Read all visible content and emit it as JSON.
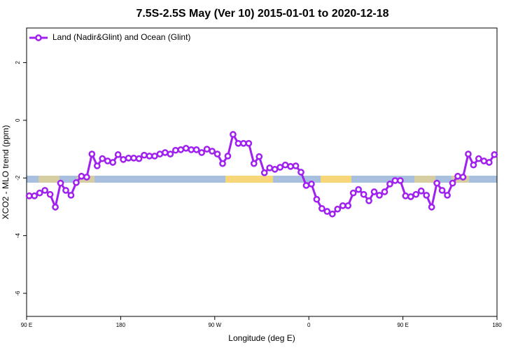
{
  "chart_data": {
    "type": "line",
    "title": "7.5S-2.5S May (Ver 10)   2015-01-01 to 2020-12-18",
    "x_label": "Longitude (deg E)",
    "y_label": "XCO2 - MLO trend (ppm)",
    "xlim": [
      90,
      540
    ],
    "ylim": [
      -6.8,
      3.2
    ],
    "xticks": [
      {
        "value": 90,
        "label": "90 E"
      },
      180,
      {
        "value": 270,
        "label": "90 W"
      },
      {
        "value": 360,
        "label": "0"
      },
      {
        "value": 450,
        "label": "90 E"
      },
      {
        "value": 540,
        "label": "180"
      }
    ],
    "yticks": [
      -6,
      -4,
      -2,
      0,
      2
    ],
    "legend": "upper left",
    "series": [
      {
        "name": "Land (Nadir&Glint) and Ocean (Glint)",
        "color": "#a020f0",
        "x": [
          92.5,
          97.5,
          102.5,
          107.5,
          112.5,
          117.5,
          122.5,
          127.5,
          132.5,
          137.5,
          142.5,
          147.5,
          152.5,
          157.5,
          162.5,
          167.5,
          172.5,
          177.5,
          182.5,
          187.5,
          192.5,
          197.5,
          202.5,
          207.5,
          212.5,
          217.5,
          222.5,
          227.5,
          232.5,
          237.5,
          242.5,
          247.5,
          252.5,
          257.5,
          262.5,
          267.5,
          272.5,
          277.5,
          282.5,
          287.5,
          292.5,
          297.5,
          302.5,
          307.5,
          312.5,
          317.5,
          322.5,
          327.5,
          332.5,
          337.5,
          342.5,
          347.5,
          352.5,
          357.5,
          362.5,
          367.5,
          372.5,
          377.5,
          382.5,
          387.5,
          392.5,
          397.5,
          402.5,
          407.5,
          412.5,
          417.5,
          422.5,
          427.5,
          432.5,
          437.5,
          442.5,
          447.5,
          452.5,
          457.5,
          462.5,
          467.5,
          472.5,
          477.5,
          482.5,
          487.5,
          492.5,
          497.5,
          502.5,
          507.5,
          512.5,
          517.5,
          522.5,
          527.5,
          532.5,
          537.5
        ],
        "values": [
          -2.62,
          -2.62,
          -2.52,
          -2.43,
          -2.57,
          -3.01,
          -2.18,
          -2.43,
          -2.6,
          -2.16,
          -1.94,
          -1.97,
          -1.17,
          -1.58,
          -1.33,
          -1.41,
          -1.46,
          -1.19,
          -1.36,
          -1.31,
          -1.31,
          -1.33,
          -1.21,
          -1.24,
          -1.24,
          -1.17,
          -1.12,
          -1.17,
          -1.04,
          -1.02,
          -0.97,
          -1.02,
          -1.02,
          -1.12,
          -1.0,
          -1.07,
          -1.17,
          -1.5,
          -1.24,
          -0.49,
          -0.8,
          -0.8,
          -0.8,
          -1.5,
          -1.26,
          -1.82,
          -1.65,
          -1.7,
          -1.63,
          -1.55,
          -1.6,
          -1.58,
          -1.8,
          -2.26,
          -2.21,
          -2.74,
          -3.06,
          -3.16,
          -3.25,
          -3.08,
          -2.96,
          -2.96,
          -2.52,
          -2.4,
          -2.57,
          -2.79,
          -2.48,
          -2.6,
          -2.48,
          -2.21,
          -2.09,
          -2.09,
          -2.62,
          -2.65,
          -2.57,
          -2.45,
          -2.6,
          -3.01,
          -2.18,
          -2.43,
          -2.6,
          -2.18,
          -1.94,
          -1.97,
          -1.17,
          -1.55,
          -1.33,
          -1.41,
          -1.46,
          -1.19
        ]
      }
    ]
  }
}
